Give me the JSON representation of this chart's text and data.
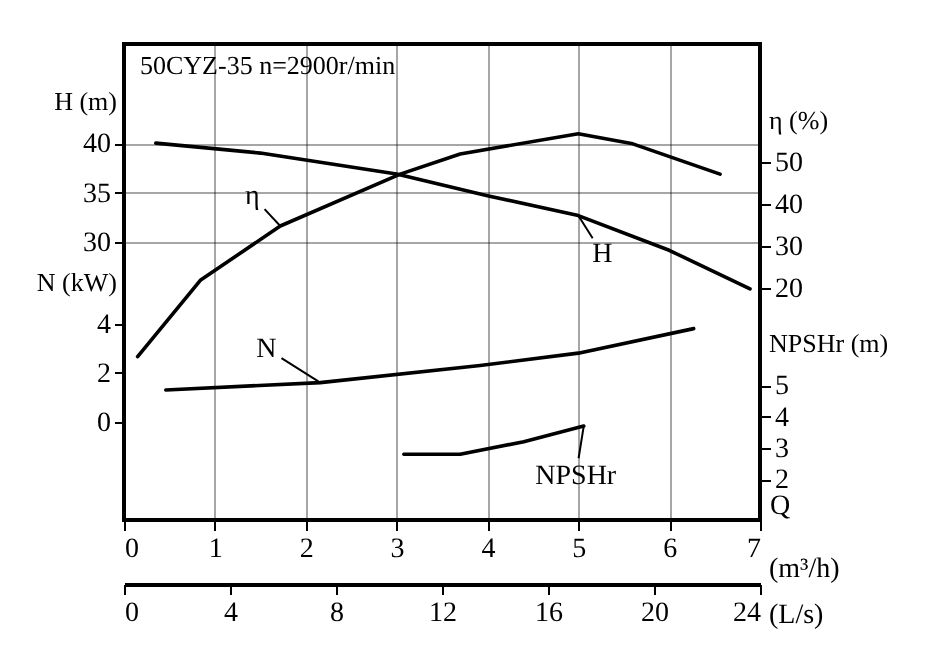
{
  "chart_data": [
    {
      "type": "line",
      "title": "50CYZ-35 n=2900r/min",
      "xlabel": "(m³/h)",
      "x2label": "(L/s)",
      "ylabel": "H (m)",
      "y2label": "η (%)",
      "y3label": "N (kW)",
      "xlim": [
        0,
        7
      ],
      "xticks": [
        0,
        1,
        2,
        3,
        4,
        5,
        6,
        7
      ],
      "x2lim": [
        0,
        24
      ],
      "x2ticks": [
        0,
        4,
        8,
        12,
        16,
        20,
        24
      ],
      "ylim": [
        2,
        50
      ],
      "yticks": [
        30,
        35,
        40
      ],
      "y2lim": [
        -35,
        78
      ],
      "y2ticks": [
        20,
        30,
        40,
        50
      ],
      "y3lim": [
        -4,
        15.4
      ],
      "y3ticks": [
        0,
        2,
        4
      ],
      "grid": true,
      "line_style": "solid",
      "annotations": [
        "Q"
      ],
      "series": [
        {
          "name": "H",
          "color": "#000000",
          "x": [
            0.35,
            1.5,
            3.0,
            4.0,
            5.0,
            6.0,
            6.89
          ],
          "values": [
            40,
            39.0,
            36.9,
            34.7,
            32.7,
            29.2,
            25.3
          ]
        },
        {
          "name": "η",
          "color": "#000000",
          "axis": "y2",
          "x": [
            0.15,
            0.84,
            1.72,
            3.04,
            3.7,
            5.0,
            5.6,
            6.56
          ],
          "values": [
            3.8,
            21.9,
            34.8,
            47.1,
            51.9,
            56.7,
            54.3,
            47.1
          ]
        },
        {
          "name": "N",
          "color": "#000000",
          "axis": "y3",
          "x": [
            0.46,
            2.16,
            3.92,
            5.0,
            6.27
          ],
          "values": [
            1.3,
            1.6,
            2.3,
            2.8,
            3.8
          ]
        }
      ]
    },
    {
      "type": "line",
      "ylabel": "NPSHr (m)",
      "xlim": [
        0,
        7
      ],
      "ylim": [
        0.7,
        15.9
      ],
      "yticks": [
        2,
        3,
        4,
        5
      ],
      "tick_labels": "y",
      "line_style": "solid",
      "series": [
        {
          "name": "NPSHr",
          "color": "#000000",
          "x": [
            3.08,
            3.7,
            4.4,
            5.06
          ],
          "values": [
            2.8,
            2.8,
            3.2,
            3.7
          ]
        }
      ]
    }
  ]
}
